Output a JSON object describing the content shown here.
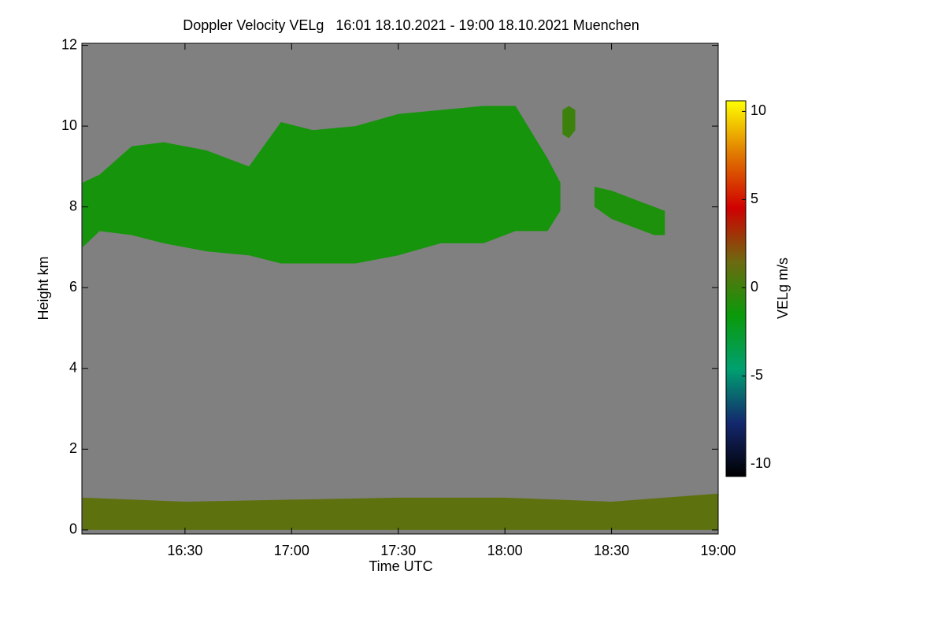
{
  "chart_data": {
    "type": "time-height",
    "title": "Doppler Velocity VELg   16:01 18.10.2021 - 19:00 18.10.2021 Muenchen",
    "xlabel": "Time UTC",
    "ylabel": "Height km",
    "xlim": [
      16.0167,
      19.0
    ],
    "xticks": [
      {
        "value": 16.5,
        "label": "16:30"
      },
      {
        "value": 17.0,
        "label": "17:00"
      },
      {
        "value": 17.5,
        "label": "17:30"
      },
      {
        "value": 18.0,
        "label": "18:00"
      },
      {
        "value": 18.5,
        "label": "18:30"
      },
      {
        "value": 19.0,
        "label": "19:00"
      }
    ],
    "ylim": [
      -0.1,
      12.05
    ],
    "yticks": [
      0,
      2,
      4,
      6,
      8,
      10,
      12
    ],
    "background": "#808080",
    "colorbar": {
      "label": "VELg m/s",
      "clim": [
        -10.7,
        10.6
      ],
      "ticks": [
        -10,
        -5,
        0,
        5,
        10
      ],
      "colormap": [
        "#000000",
        "#14286e",
        "#00a070",
        "#0a9a0a",
        "#6d6a10",
        "#d00000",
        "#e07800",
        "#ffff00"
      ]
    },
    "regions": [
      {
        "x": [
          16.02,
          16.1,
          16.25,
          16.4,
          16.6,
          16.8,
          16.95,
          17.1,
          17.3,
          17.5,
          17.7,
          17.9,
          18.05,
          18.2,
          18.26
        ],
        "top": [
          8.6,
          8.8,
          9.5,
          9.6,
          9.4,
          9.0,
          10.1,
          9.9,
          10.0,
          10.3,
          10.4,
          10.5,
          10.5,
          9.2,
          8.6
        ],
        "base": [
          7.0,
          7.4,
          7.3,
          7.1,
          6.9,
          6.8,
          6.6,
          6.6,
          6.6,
          6.8,
          7.1,
          7.1,
          7.4,
          7.4,
          7.9
        ],
        "velocity": -1.2
      },
      {
        "x": [
          18.42,
          18.5,
          18.6,
          18.7,
          18.75
        ],
        "top": [
          8.5,
          8.4,
          8.2,
          8.0,
          7.9
        ],
        "base": [
          8.0,
          7.7,
          7.5,
          7.3,
          7.3
        ],
        "velocity": -1.0
      },
      {
        "x": [
          18.27,
          18.3,
          18.33
        ],
        "top": [
          10.4,
          10.5,
          10.4
        ],
        "base": [
          9.8,
          9.7,
          9.9
        ],
        "velocity": 0.0
      },
      {
        "x": [
          16.02,
          16.5,
          17.0,
          17.5,
          18.0,
          18.5,
          19.0
        ],
        "top": [
          0.8,
          0.7,
          0.75,
          0.8,
          0.8,
          0.7,
          0.9
        ],
        "base": [
          0,
          0,
          0,
          0,
          0,
          0,
          0
        ],
        "velocity": 1.0
      }
    ]
  }
}
